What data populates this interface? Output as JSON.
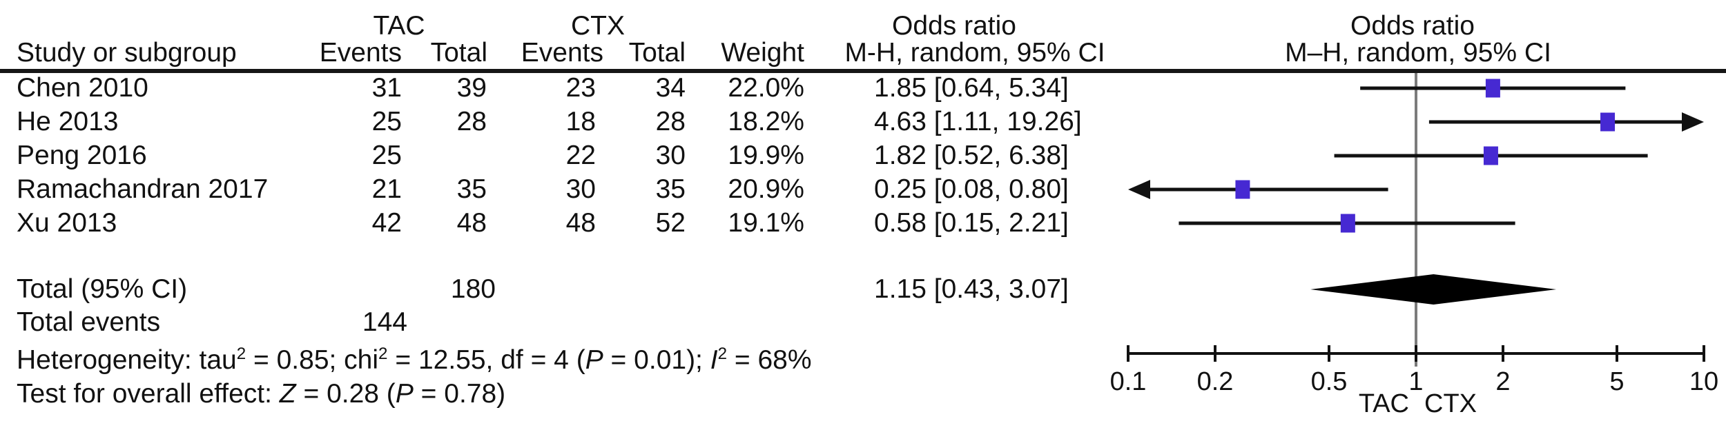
{
  "header": {
    "study_col": "Study or subgroup",
    "group1": "TAC",
    "group2": "CTX",
    "events": "Events",
    "total": "Total",
    "weight": "Weight",
    "or_text_title": "Odds ratio",
    "or_text_subtitle": "M-H, random, 95% CI",
    "or_plot_title": "Odds ratio",
    "or_plot_subtitle": "M–H, random, 95% CI"
  },
  "rows": [
    {
      "study": "Chen 2010",
      "tac_events": "31",
      "tac_total": "39",
      "ctx_events": "23",
      "ctx_total": "34",
      "weight": "22.0%",
      "or_label": "1.85 [0.64, 5.34]"
    },
    {
      "study": "He 2013",
      "tac_events": "25",
      "tac_total": "28",
      "ctx_events": "18",
      "ctx_total": "28",
      "weight": "18.2%",
      "or_label": "4.63 [1.11, 19.26]"
    },
    {
      "study": "Peng 2016",
      "tac_events": "25",
      "tac_total": "",
      "ctx_events": "22",
      "ctx_total": "30",
      "weight": "19.9%",
      "or_label": "1.82 [0.52, 6.38]"
    },
    {
      "study": "Ramachandran 2017",
      "tac_events": "21",
      "tac_total": "35",
      "ctx_events": "30",
      "ctx_total": "35",
      "weight": "20.9%",
      "or_label": "0.25 [0.08, 0.80]"
    },
    {
      "study": "Xu 2013",
      "tac_events": "42",
      "tac_total": "48",
      "ctx_events": "48",
      "ctx_total": "52",
      "weight": "19.1%",
      "or_label": "0.58 [0.15, 2.21]"
    }
  ],
  "totals": {
    "label": "Total (95% CI)",
    "tac_total": "180",
    "or_label": "1.15 [0.43, 3.07]",
    "events_label": "Total events",
    "tac_events": "144"
  },
  "stats": {
    "het": {
      "t1": "Heterogeneity: tau",
      "s1": "2",
      "t2": " = 0.85; chi",
      "s2": "2",
      "t3": " = 12.55, df = 4 (",
      "i1": "P",
      "t4": " = 0.01); ",
      "i2": "I",
      "s3": "2",
      "t5": " = 68%"
    },
    "test": {
      "t1": "Test for overall effect: ",
      "i1": "Z",
      "t2": " = 0.28 (",
      "i2": "P",
      "t3": " = 0.78)"
    }
  },
  "colors": {
    "marker": "#4629d2",
    "ci_line": "#111111",
    "null_line": "#7b7b7b",
    "axis": "#111111",
    "diamond": "#000000"
  },
  "chart_data": {
    "type": "forest",
    "x_scale": "log10",
    "axis_range": [
      0.1,
      10
    ],
    "axis_ticks": [
      0.1,
      0.2,
      0.5,
      1,
      2,
      5,
      10
    ],
    "null_line": 1,
    "left_label": "TAC",
    "right_label": "CTX",
    "series": [
      {
        "name": "Chen 2010",
        "or": 1.85,
        "ci": [
          0.64,
          5.34
        ],
        "weight": 22.0
      },
      {
        "name": "He 2013",
        "or": 4.63,
        "ci": [
          1.11,
          19.26
        ],
        "weight": 18.2
      },
      {
        "name": "Peng 2016",
        "or": 1.82,
        "ci": [
          0.52,
          6.38
        ],
        "weight": 19.9
      },
      {
        "name": "Ramachandran 2017",
        "or": 0.25,
        "ci": [
          0.08,
          0.8
        ],
        "weight": 20.9
      },
      {
        "name": "Xu 2013",
        "or": 0.58,
        "ci": [
          0.15,
          2.21
        ],
        "weight": 19.1
      }
    ],
    "total": {
      "name": "Total (95% CI)",
      "or": 1.15,
      "ci": [
        0.43,
        3.07
      ]
    }
  }
}
